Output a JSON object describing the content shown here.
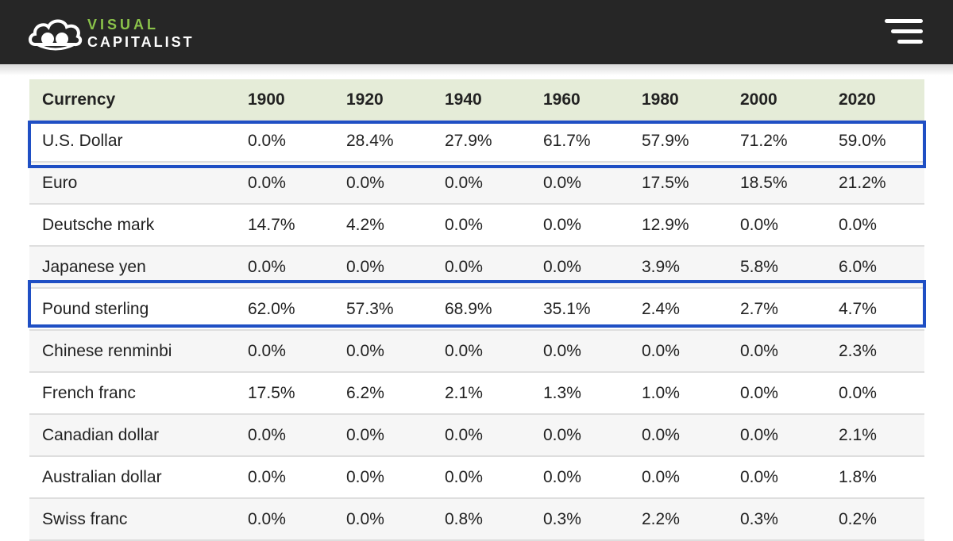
{
  "brand": {
    "line1": "VISUAL",
    "line2": "CAPITALIST",
    "accent_color": "#8bc34a",
    "header_color": "#262626"
  },
  "menu": {
    "icon": "hamburger-menu-icon"
  },
  "table": {
    "headers": [
      "Currency",
      "1900",
      "1920",
      "1940",
      "1960",
      "1980",
      "2000",
      "2020"
    ],
    "rows": [
      [
        "U.S. Dollar",
        "0.0%",
        "28.4%",
        "27.9%",
        "61.7%",
        "57.9%",
        "71.2%",
        "59.0%"
      ],
      [
        "Euro",
        "0.0%",
        "0.0%",
        "0.0%",
        "0.0%",
        "17.5%",
        "18.5%",
        "21.2%"
      ],
      [
        "Deutsche mark",
        "14.7%",
        "4.2%",
        "0.0%",
        "0.0%",
        "12.9%",
        "0.0%",
        "0.0%"
      ],
      [
        "Japanese yen",
        "0.0%",
        "0.0%",
        "0.0%",
        "0.0%",
        "3.9%",
        "5.8%",
        "6.0%"
      ],
      [
        "Pound sterling",
        "62.0%",
        "57.3%",
        "68.9%",
        "35.1%",
        "2.4%",
        "2.7%",
        "4.7%"
      ],
      [
        "Chinese renminbi",
        "0.0%",
        "0.0%",
        "0.0%",
        "0.0%",
        "0.0%",
        "0.0%",
        "2.3%"
      ],
      [
        "French franc",
        "17.5%",
        "6.2%",
        "2.1%",
        "1.3%",
        "1.0%",
        "0.0%",
        "0.0%"
      ],
      [
        "Canadian dollar",
        "0.0%",
        "0.0%",
        "0.0%",
        "0.0%",
        "0.0%",
        "0.0%",
        "2.1%"
      ],
      [
        "Australian dollar",
        "0.0%",
        "0.0%",
        "0.0%",
        "0.0%",
        "0.0%",
        "0.0%",
        "1.8%"
      ],
      [
        "Swiss franc",
        "0.0%",
        "0.0%",
        "0.8%",
        "0.3%",
        "2.2%",
        "0.3%",
        "0.2%"
      ]
    ],
    "header_bg": "#e5ecd8",
    "highlighted_rows": [
      "U.S. Dollar",
      "Pound sterling"
    ],
    "highlight_color": "#1f4fc4"
  }
}
